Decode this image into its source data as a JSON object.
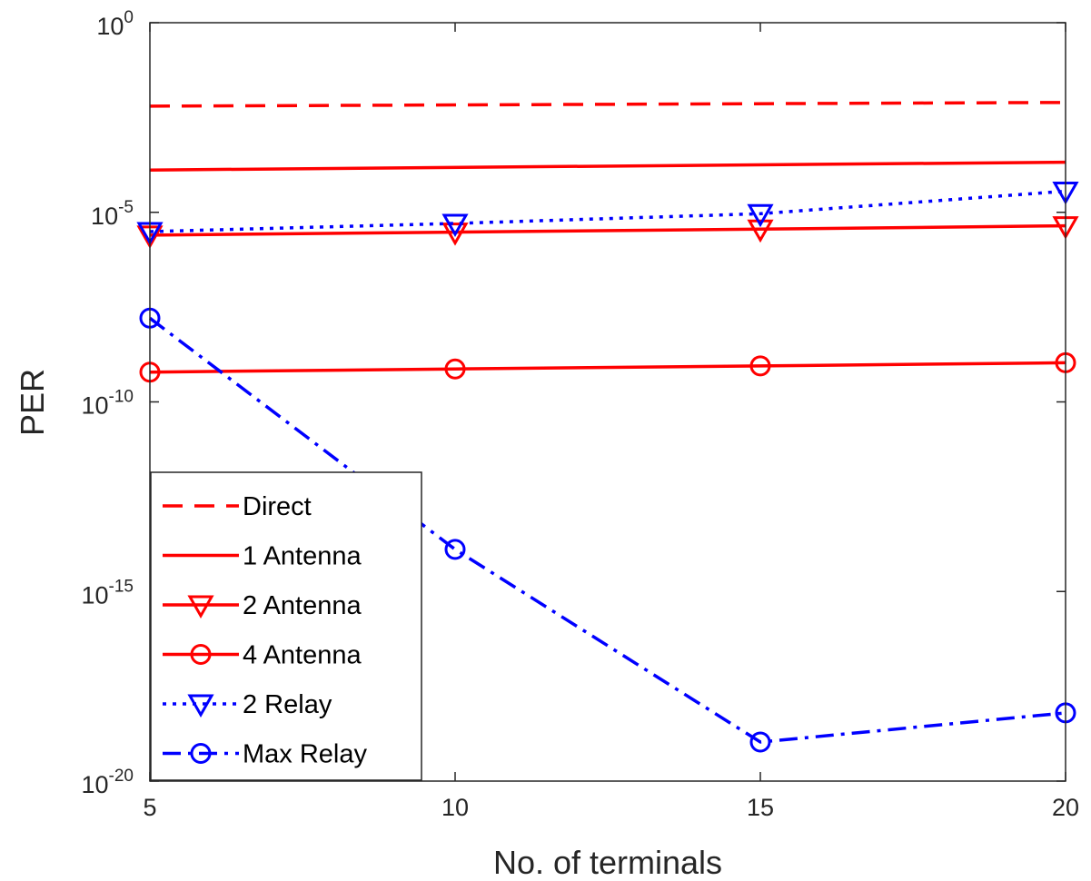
{
  "chart_data": {
    "type": "line",
    "xlabel": "No. of terminals",
    "ylabel": "PER",
    "xlim": [
      5,
      20
    ],
    "ylim": [
      1e-20,
      1
    ],
    "yscale": "log",
    "grid": false,
    "legend_position": "bottom-left",
    "x_ticks": [
      5,
      10,
      15,
      20
    ],
    "x_tick_labels": [
      "5",
      "10",
      "15",
      "20"
    ],
    "y_ticks": [
      {
        "value": 1e-20,
        "base": "10",
        "exp": "-20"
      },
      {
        "value": 1e-15,
        "base": "10",
        "exp": "-15"
      },
      {
        "value": 1e-10,
        "base": "10",
        "exp": "-10"
      },
      {
        "value": 1e-05,
        "base": "10",
        "exp": "-5"
      },
      {
        "value": 1,
        "base": "10",
        "exp": "0"
      }
    ],
    "series": [
      {
        "name": "Direct",
        "x": [
          5,
          20
        ],
        "y": [
          0.0063,
          0.0079
        ],
        "color": "#ff0000",
        "line": "dashed",
        "marker": "none"
      },
      {
        "name": "1 Antenna",
        "x": [
          5,
          20
        ],
        "y": [
          0.00013,
          0.000209
        ],
        "color": "#ff0000",
        "line": "solid",
        "marker": "none"
      },
      {
        "name": "2 Antenna",
        "x": [
          5,
          10,
          15,
          20
        ],
        "y": [
          2.5e-06,
          3e-06,
          3.6e-06,
          4.4e-06
        ],
        "color": "#ff0000",
        "line": "solid",
        "marker": "triangle-down"
      },
      {
        "name": "4 Antenna",
        "x": [
          5,
          10,
          15,
          20
        ],
        "y": [
          6.1e-10,
          7.4e-10,
          8.9e-10,
          1.08e-09
        ],
        "color": "#ff0000",
        "line": "solid",
        "marker": "circle"
      },
      {
        "name": "2 Relay",
        "x": [
          5,
          10,
          15,
          20
        ],
        "y": [
          3.1e-06,
          5.1e-06,
          9.2e-06,
          3.6e-05
        ],
        "color": "#0000ff",
        "line": "dotted",
        "marker": "triangle-down"
      },
      {
        "name": "Max Relay",
        "x": [
          5,
          10,
          15,
          20
        ],
        "y": [
          1.62e-08,
          1.29e-14,
          1.07e-19,
          6.3e-19
        ],
        "color": "#0000ff",
        "line": "dashdot",
        "marker": "circle"
      }
    ]
  }
}
